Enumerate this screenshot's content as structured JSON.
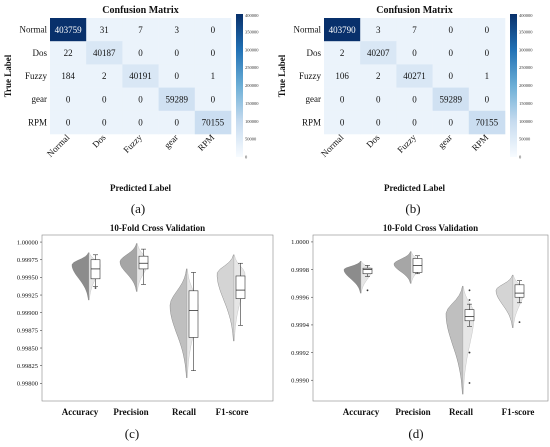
{
  "chart_data": [
    {
      "type": "heatmap",
      "panel": "(a)",
      "title": "Confusion Matrix",
      "xlabel": "Predicted Label",
      "ylabel": "True Label",
      "labels": [
        "Normal",
        "Dos",
        "Fuzzy",
        "gear",
        "RPM"
      ],
      "matrix": [
        [
          403759,
          31,
          7,
          3,
          0
        ],
        [
          22,
          40187,
          0,
          0,
          0
        ],
        [
          184,
          2,
          40191,
          0,
          1
        ],
        [
          0,
          0,
          0,
          59289,
          0
        ],
        [
          0,
          0,
          0,
          0,
          70155
        ]
      ],
      "colorbar_ticks": [
        "400000",
        "350000",
        "300000",
        "250000",
        "200000",
        "150000",
        "100000",
        "50000",
        "0"
      ],
      "colorbar_max": 400000
    },
    {
      "type": "heatmap",
      "panel": "(b)",
      "title": "Confusion Matrix",
      "xlabel": "Predicted Label",
      "ylabel": "True Label",
      "labels": [
        "Normal",
        "Dos",
        "Fuzzy",
        "gear",
        "RPM"
      ],
      "matrix": [
        [
          403790,
          3,
          7,
          0,
          0
        ],
        [
          2,
          40207,
          0,
          0,
          0
        ],
        [
          106,
          2,
          40271,
          0,
          1
        ],
        [
          0,
          0,
          0,
          59289,
          0
        ],
        [
          0,
          0,
          0,
          0,
          70155
        ]
      ],
      "colorbar_ticks": [
        "400000",
        "350000",
        "300000",
        "250000",
        "200000",
        "150000",
        "100000",
        "50000",
        "0"
      ],
      "colorbar_max": 400000
    },
    {
      "type": "violin",
      "panel": "(c)",
      "title": "10-Fold Cross Validation",
      "categories": [
        "Accuracy",
        "Precision",
        "Recall",
        "F1-score"
      ],
      "ylim": [
        0.99775,
        1.0001
      ],
      "yticks": [
        "1.00000",
        "0.99975",
        "0.99950",
        "0.99925",
        "0.99900",
        "0.99875",
        "0.99850",
        "0.99825",
        "0.99800"
      ],
      "ytick_values": [
        1.0,
        0.99975,
        0.9995,
        0.99925,
        0.999,
        0.99875,
        0.9985,
        0.99825,
        0.998
      ],
      "box": [
        {
          "min": 0.99937,
          "q1": 0.99948,
          "median": 0.99962,
          "q3": 0.99975,
          "max": 0.99982,
          "fliers": [
            0.99935
          ]
        },
        {
          "min": 0.9994,
          "q1": 0.99962,
          "median": 0.9997,
          "q3": 0.9998,
          "max": 0.9999,
          "fliers": []
        },
        {
          "min": 0.99818,
          "q1": 0.99865,
          "median": 0.99903,
          "q3": 0.99931,
          "max": 0.99957,
          "fliers": []
        },
        {
          "min": 0.99882,
          "q1": 0.9992,
          "median": 0.99932,
          "q3": 0.99952,
          "max": 0.9997,
          "fliers": []
        }
      ],
      "violin_range": [
        [
          0.99918,
          0.99985
        ],
        [
          0.9993,
          0.99998
        ],
        [
          0.99808,
          0.99962
        ],
        [
          0.9986,
          0.99982
        ]
      ],
      "violin_peak": [
        0.99968,
        0.99972,
        0.9991,
        0.99955
      ]
    },
    {
      "type": "violin",
      "panel": "(d)",
      "title": "10-Fold Cross Validation",
      "categories": [
        "Accuracy",
        "Precision",
        "Recall",
        "F1-score"
      ],
      "ylim": [
        0.99885,
        1.00005
      ],
      "yticks": [
        "1.0000",
        "0.9998",
        "0.9996",
        "0.9994",
        "0.9992",
        "0.9990"
      ],
      "ytick_values": [
        1.0,
        0.9998,
        0.9996,
        0.9994,
        0.9992,
        0.999
      ],
      "box": [
        {
          "min": 0.99975,
          "q1": 0.99977,
          "median": 0.9998,
          "q3": 0.99981,
          "max": 0.99983,
          "fliers": [
            0.99965
          ]
        },
        {
          "min": 0.99977,
          "q1": 0.99978,
          "median": 0.99983,
          "q3": 0.99988,
          "max": 0.9999,
          "fliers": []
        },
        {
          "min": 0.99939,
          "q1": 0.99943,
          "median": 0.99946,
          "q3": 0.99951,
          "max": 0.99955,
          "fliers": [
            0.99965,
            0.99958,
            0.9992,
            0.99898
          ]
        },
        {
          "min": 0.99956,
          "q1": 0.9996,
          "median": 0.99963,
          "q3": 0.99969,
          "max": 0.99972,
          "fliers": [
            0.99942
          ]
        }
      ],
      "violin_range": [
        [
          0.99963,
          0.99986
        ],
        [
          0.9997,
          0.99993
        ],
        [
          0.9989,
          0.99968
        ],
        [
          0.99938,
          0.99976
        ]
      ],
      "violin_peak": [
        0.9998,
        0.99984,
        0.99948,
        0.99965
      ]
    }
  ]
}
